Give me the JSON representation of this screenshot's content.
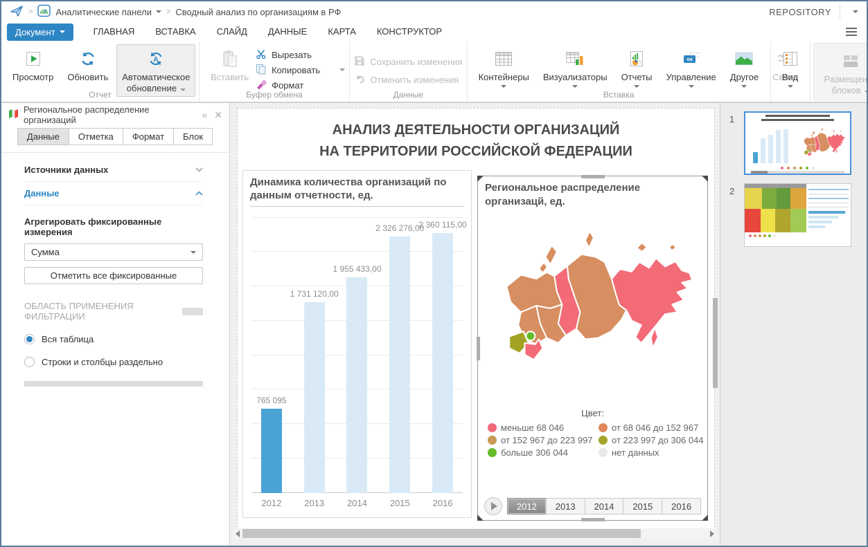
{
  "topbar": {
    "breadcrumb": {
      "section": "Аналитические панели",
      "document": "Сводный анализ по организациям в РФ"
    },
    "repository_label": "REPOSITORY"
  },
  "menubar": {
    "document_button": "Документ",
    "tabs": [
      {
        "label": "ГЛАВНАЯ",
        "active": true
      },
      {
        "label": "ВСТАВКА",
        "active": false
      },
      {
        "label": "СЛАЙД",
        "active": false
      },
      {
        "label": "ДАННЫЕ",
        "active": false
      },
      {
        "label": "КАРТА",
        "active": false
      },
      {
        "label": "КОНСТРУКТОР",
        "active": false
      }
    ]
  },
  "ribbon": {
    "report_group": {
      "label": "Отчет",
      "preview": "Просмотр",
      "refresh": "Обновить",
      "auto_refresh_line1": "Автоматическое",
      "auto_refresh_line2": "обновление"
    },
    "clipboard_group": {
      "label": "Буфер обмена",
      "paste": "Вставить",
      "cut": "Вырезать",
      "copy": "Копировать",
      "format": "Формат"
    },
    "data_group": {
      "label": "Данные",
      "save": "Сохранить изменения",
      "undo": "Отменить изменения"
    },
    "insert_group": {
      "label": "Вставка",
      "containers": "Контейнеры",
      "visualizers": "Визуализаторы",
      "reports": "Отчеты",
      "management": "Управление",
      "other": "Другое",
      "link": "Связь"
    },
    "view": "Вид",
    "layout_line1": "Размещение",
    "layout_line2": "блоков"
  },
  "panel": {
    "title": "Региональное распределение организаций",
    "tabs": [
      {
        "label": "Данные",
        "active": true
      },
      {
        "label": "Отметка",
        "active": false
      },
      {
        "label": "Формат",
        "active": false
      },
      {
        "label": "Блок",
        "active": false
      }
    ],
    "sections": {
      "sources": "Источники данных",
      "data": "Данные"
    },
    "aggregate_label": "Агрегировать фиксированные измерения",
    "aggregate_value": "Сумма",
    "mark_all_button": "Отметить все фиксированные",
    "filter_scope_label": "ОБЛАСТЬ ПРИМЕНЕНИЯ ФИЛЬТРАЦИИ",
    "filter_options": [
      {
        "label": "Вся таблица",
        "selected": true
      },
      {
        "label": "Строки и столбцы раздельно",
        "selected": false
      }
    ]
  },
  "page": {
    "title_line1": "АНАЛИЗ ДЕЯТЕЛЬНОСТИ ОРГАНИЗАЦИЙ",
    "title_line2": "НА ТЕРРИТОРИИ РОССИЙСКОЙ ФЕДЕРАЦИИ"
  },
  "chart_data": [
    {
      "type": "bar",
      "title": "Динамика количества организаций по данным отчетности, ед.",
      "categories": [
        "2012",
        "2013",
        "2014",
        "2015",
        "2016"
      ],
      "values": [
        765095,
        1731120,
        1955433,
        2326276,
        2360115
      ],
      "value_labels": [
        "765 095",
        "1 731 120,00",
        "1 955 433,00",
        "2 326 276,00",
        "2 360 115,00"
      ],
      "bar_colors": [
        "#4ba3d5",
        "#d9eaf6",
        "#d9eaf6",
        "#d9eaf6",
        "#d9eaf6"
      ],
      "xlabel": "",
      "ylabel": "",
      "ylim": [
        0,
        2500000
      ],
      "grid": true,
      "legend_position": "none"
    },
    {
      "type": "heatmap",
      "subtype": "choropleth-map-of-russia",
      "title": "Региональное распределение организацй, ед.",
      "legend_title": "Цвет:",
      "classes": [
        {
          "label": "меньше 68 046",
          "color": "#f2697c"
        },
        {
          "label": "от 68 046 до 152 967",
          "color": "#e0885a"
        },
        {
          "label": "от 152 967 до 223 997",
          "color": "#c89a55"
        },
        {
          "label": "от 223 997 до 306 044",
          "color": "#a6a32b"
        },
        {
          "label": "больше 306 044",
          "color": "#64bd29"
        },
        {
          "label": "нет данных",
          "color": "#e9e9e9"
        }
      ],
      "timeline_years": [
        "2012",
        "2013",
        "2014",
        "2015",
        "2016"
      ],
      "active_year": "2012"
    }
  ],
  "map": {
    "title": "Региональное распределение организацй, ед.",
    "legend_title": "Цвет:",
    "legend": [
      {
        "label": "меньше 68 046",
        "color": "#f2697c"
      },
      {
        "label": "от 68 046 до 152 967",
        "color": "#e0885a"
      },
      {
        "label": "от 152 967 до 223 997",
        "color": "#c89a55"
      },
      {
        "label": "от 223 997 до 306 044",
        "color": "#a6a32b"
      },
      {
        "label": "больше 306 044",
        "color": "#64bd29"
      },
      {
        "label": "нет данных",
        "color": "#e9e9e9"
      }
    ],
    "timeline": {
      "years": [
        "2012",
        "2013",
        "2014",
        "2015",
        "2016"
      ],
      "active": "2012"
    },
    "region_fills": {
      "northwest": "#d78e60",
      "nw-islands": "#d78e60",
      "nw-islands2": "#d78e60",
      "siberia": "#d78e60",
      "ural": "#f26b77",
      "far-east": "#f26b77",
      "sakhalin": "#f26b77",
      "fe-island": "#d78e60",
      "fe-island2": "#d78e60",
      "sib-island": "#d78e60",
      "volga": "#d78e60",
      "central": "#d78e60",
      "caucasus": "#a2a325",
      "south": "#f26b77",
      "green-spot": "#64bd29"
    }
  },
  "slides": {
    "items": [
      {
        "number": "1",
        "selected": true
      },
      {
        "number": "2",
        "selected": false
      }
    ]
  },
  "icons": {
    "topbar": [
      "paper-plane-icon",
      "dashboard-icon",
      "caret-down-icon",
      "hamburger-icon"
    ],
    "ribbon": [
      "play-icon",
      "refresh-icon",
      "auto-refresh-icon",
      "paste-icon",
      "scissors-icon",
      "copy-icon",
      "format-brush-icon",
      "save-icon",
      "undo-icon",
      "containers-grid-icon",
      "visualizers-icon",
      "report-doc-icon",
      "ok-button-icon",
      "picture-icon",
      "link-icon",
      "view-list-icon",
      "layout-blocks-icon"
    ],
    "panel": [
      "map-icon",
      "collapse-icon",
      "close-icon",
      "chevron-down-icon",
      "chevron-up-icon",
      "radio-icon"
    ]
  }
}
